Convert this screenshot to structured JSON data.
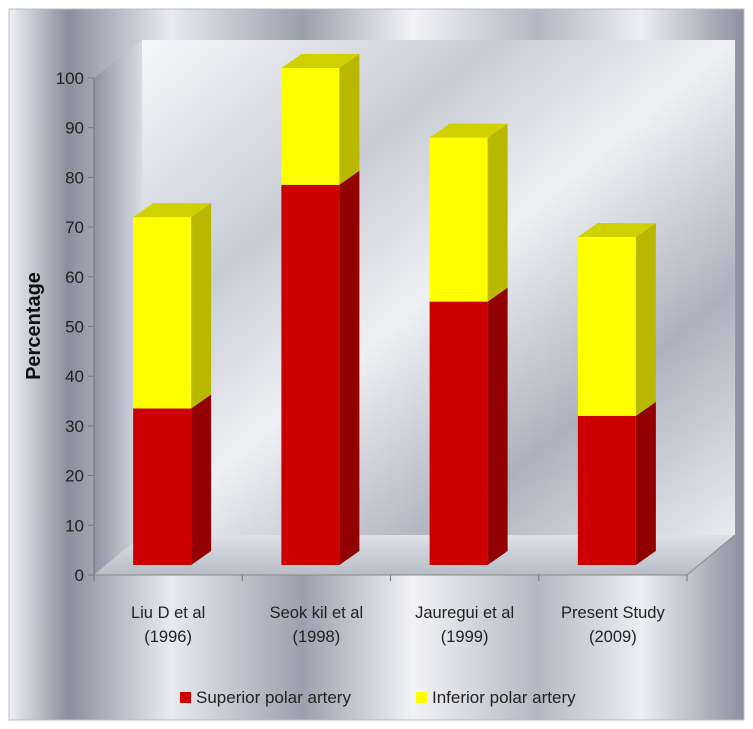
{
  "chart_data": {
    "type": "bar",
    "stacked": true,
    "three_d": true,
    "title": "",
    "xlabel": "",
    "ylabel": "Percentage",
    "ylim": [
      0,
      100
    ],
    "yticks": [
      0,
      10,
      20,
      30,
      40,
      50,
      60,
      70,
      80,
      90,
      100
    ],
    "categories": [
      [
        "Liu D et al",
        "(1996)"
      ],
      [
        "Seok kil et al",
        "(1998)"
      ],
      [
        "Jauregui et al",
        "(1999)"
      ],
      [
        "Present Study",
        "(2009)"
      ]
    ],
    "series": [
      {
        "name": "Superior polar artery",
        "values": [
          31.5,
          76.5,
          53,
          30
        ],
        "color": "#cc0000"
      },
      {
        "name": "Inferior polar artery",
        "values": [
          38.5,
          23.5,
          33,
          36
        ],
        "color": "#ffff00"
      }
    ],
    "grid": false,
    "legend": "bottom"
  }
}
